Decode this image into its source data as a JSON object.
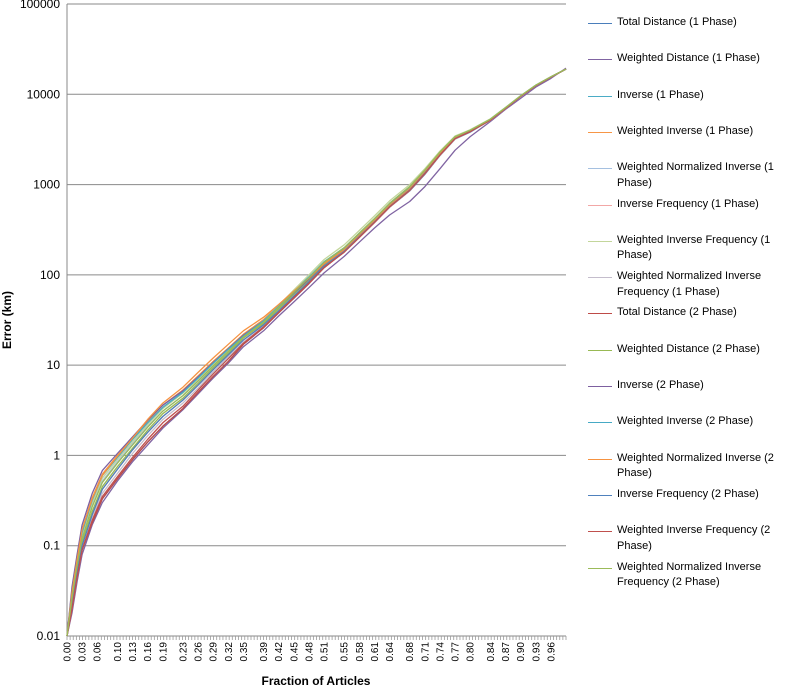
{
  "chart_data": {
    "type": "line",
    "title": "",
    "xlabel": "Fraction of Articles",
    "ylabel": "Error (km)",
    "y_scale": "log",
    "ylim": [
      0.01,
      100000
    ],
    "xlim": [
      0.0,
      0.99
    ],
    "y_ticks": [
      "0.01",
      "0.1",
      "1",
      "10",
      "100",
      "1000",
      "10000",
      "100000"
    ],
    "x_ticks": [
      "0.00",
      "0.03",
      "0.06",
      "0.10",
      "0.13",
      "0.16",
      "0.19",
      "0.23",
      "0.26",
      "0.29",
      "0.32",
      "0.35",
      "0.39",
      "0.42",
      "0.45",
      "0.48",
      "0.51",
      "0.55",
      "0.58",
      "0.61",
      "0.64",
      "0.68",
      "0.71",
      "0.74",
      "0.77",
      "0.80",
      "0.84",
      "0.87",
      "0.90",
      "0.93",
      "0.96"
    ],
    "grid": "horizontal",
    "legend_position": "right",
    "x": [
      0.0,
      0.01,
      0.02,
      0.03,
      0.05,
      0.07,
      0.1,
      0.13,
      0.16,
      0.19,
      0.23,
      0.26,
      0.29,
      0.32,
      0.35,
      0.39,
      0.42,
      0.45,
      0.48,
      0.51,
      0.55,
      0.58,
      0.61,
      0.64,
      0.68,
      0.71,
      0.74,
      0.77,
      0.8,
      0.84,
      0.87,
      0.9,
      0.93,
      0.96,
      0.99
    ],
    "series": [
      {
        "name": "Total Distance (1 Phase)",
        "color": "#4A7EBB",
        "values": [
          0.01,
          0.02,
          0.045,
          0.09,
          0.18,
          0.33,
          0.55,
          0.9,
          1.4,
          2.1,
          3.3,
          5.0,
          7.5,
          11,
          17,
          26,
          38,
          55,
          80,
          120,
          180,
          260,
          380,
          560,
          850,
          1300,
          2100,
          3200,
          3800,
          5200,
          7000,
          9500,
          12500,
          15500,
          19000
        ]
      },
      {
        "name": "Weighted Distance (1 Phase)",
        "color": "#8064A2",
        "values": [
          0.01,
          0.018,
          0.04,
          0.08,
          0.17,
          0.3,
          0.52,
          0.85,
          1.3,
          2.0,
          3.2,
          4.8,
          7.2,
          10.5,
          16,
          24,
          35,
          50,
          72,
          105,
          160,
          230,
          330,
          460,
          650,
          950,
          1500,
          2400,
          3400,
          5000,
          6800,
          9000,
          12000,
          15000,
          19500
        ]
      },
      {
        "name": "Inverse (1 Phase)",
        "color": "#4BACC6",
        "values": [
          0.01,
          0.03,
          0.07,
          0.14,
          0.32,
          0.6,
          0.95,
          1.5,
          2.3,
          3.4,
          5.0,
          7.2,
          10.5,
          15,
          21,
          31,
          45,
          66,
          95,
          140,
          200,
          290,
          420,
          620,
          950,
          1450,
          2300,
          3400,
          4000,
          5300,
          7100,
          9600,
          12600,
          15600,
          19000
        ]
      },
      {
        "name": "Weighted Inverse (1 Phase)",
        "color": "#F79646",
        "values": [
          0.01,
          0.032,
          0.075,
          0.15,
          0.34,
          0.62,
          1.0,
          1.55,
          2.4,
          3.6,
          5.3,
          7.6,
          11,
          15.5,
          22,
          32,
          46,
          65,
          92,
          135,
          195,
          280,
          410,
          610,
          930,
          1420,
          2250,
          3350,
          3950,
          5250,
          7050,
          9550,
          12550,
          15550,
          19000
        ]
      },
      {
        "name": "Weighted Normalized Inverse (1 Phase)",
        "color": "#A5C0E0",
        "values": [
          0.01,
          0.025,
          0.06,
          0.12,
          0.28,
          0.52,
          0.85,
          1.35,
          2.1,
          3.1,
          4.6,
          6.6,
          9.7,
          14,
          20,
          29,
          42,
          60,
          86,
          128,
          185,
          270,
          390,
          580,
          880,
          1350,
          2150,
          3250,
          3900,
          5200,
          7000,
          9500,
          12500,
          15500,
          19000
        ]
      },
      {
        "name": "Inverse Frequency (1 Phase)",
        "color": "#F2A7A6",
        "values": [
          0.01,
          0.022,
          0.05,
          0.1,
          0.22,
          0.42,
          0.7,
          1.15,
          1.8,
          2.7,
          4.1,
          6.0,
          8.9,
          13,
          19,
          28,
          40,
          58,
          84,
          125,
          182,
          265,
          385,
          570,
          870,
          1340,
          2130,
          3230,
          3880,
          5180,
          6980,
          9480,
          12480,
          15480,
          19000
        ]
      },
      {
        "name": "Weighted Inverse Frequency (1 Phase)",
        "color": "#C3D69B",
        "values": [
          0.01,
          0.028,
          0.065,
          0.13,
          0.3,
          0.56,
          0.9,
          1.42,
          2.2,
          3.3,
          4.9,
          7.0,
          10.2,
          14.8,
          21,
          31,
          46,
          68,
          100,
          148,
          215,
          310,
          450,
          660,
          1000,
          1500,
          2350,
          3450,
          4050,
          5350,
          7150,
          9650,
          12650,
          15650,
          19000
        ]
      },
      {
        "name": "Weighted Normalized Inverse Frequency (1 Phase)",
        "color": "#C4BDCC",
        "values": [
          0.01,
          0.02,
          0.045,
          0.09,
          0.2,
          0.38,
          0.63,
          1.05,
          1.65,
          2.5,
          3.8,
          5.6,
          8.4,
          12.3,
          18,
          27,
          39,
          56,
          82,
          122,
          178,
          260,
          378,
          560,
          860,
          1320,
          2100,
          3200,
          3850,
          5150,
          6950,
          9450,
          12450,
          15450,
          19000
        ]
      },
      {
        "name": "Total Distance (2 Phase)",
        "color": "#BE4B48",
        "values": [
          0.01,
          0.02,
          0.045,
          0.09,
          0.18,
          0.33,
          0.55,
          0.9,
          1.4,
          2.1,
          3.3,
          5.0,
          7.5,
          11,
          17,
          26,
          38,
          55,
          80,
          120,
          180,
          260,
          385,
          570,
          870,
          1330,
          2150,
          3250,
          3850,
          5250,
          7050,
          9550,
          12550,
          15550,
          19000
        ]
      },
      {
        "name": "Weighted Distance (2 Phase)",
        "color": "#98B954",
        "values": [
          0.01,
          0.025,
          0.055,
          0.11,
          0.24,
          0.45,
          0.75,
          1.2,
          1.9,
          2.9,
          4.3,
          6.3,
          9.3,
          13.5,
          20,
          29,
          42,
          61,
          88,
          130,
          190,
          275,
          400,
          600,
          920,
          1420,
          2250,
          3350,
          3950,
          5250,
          7050,
          9550,
          12550,
          15550,
          19000
        ]
      },
      {
        "name": "Inverse (2 Phase)",
        "color": "#7D60A0",
        "values": [
          0.01,
          0.035,
          0.08,
          0.17,
          0.38,
          0.68,
          1.05,
          1.6,
          2.45,
          3.6,
          5.2,
          7.4,
          10.7,
          15.2,
          21.5,
          31,
          44,
          63,
          90,
          132,
          190,
          275,
          400,
          590,
          900,
          1380,
          2200,
          3300,
          3900,
          5200,
          7000,
          9500,
          12500,
          15500,
          19000
        ]
      },
      {
        "name": "Weighted Inverse (2 Phase)",
        "color": "#46AAC5",
        "values": [
          0.01,
          0.03,
          0.07,
          0.14,
          0.32,
          0.6,
          0.95,
          1.5,
          2.3,
          3.4,
          5.0,
          7.2,
          10.5,
          15,
          21,
          31,
          45,
          65,
          93,
          137,
          198,
          285,
          415,
          615,
          940,
          1440,
          2280,
          3380,
          3980,
          5280,
          7080,
          9580,
          12580,
          15580,
          19000
        ]
      },
      {
        "name": "Weighted Normalized Inverse (2 Phase)",
        "color": "#F69240",
        "values": [
          0.01,
          0.03,
          0.07,
          0.15,
          0.33,
          0.6,
          0.98,
          1.55,
          2.5,
          3.8,
          5.7,
          8.3,
          12,
          17,
          24,
          34,
          47,
          66,
          92,
          133,
          190,
          275,
          400,
          590,
          900,
          1380,
          2200,
          3300,
          3900,
          5200,
          7000,
          9500,
          12500,
          15500,
          19000
        ]
      },
      {
        "name": "Inverse Frequency (2 Phase)",
        "color": "#4F81BD",
        "values": [
          0.01,
          0.022,
          0.05,
          0.1,
          0.22,
          0.42,
          0.7,
          1.15,
          1.8,
          2.7,
          4.1,
          6.0,
          8.9,
          13,
          19,
          28,
          40,
          58,
          84,
          125,
          182,
          265,
          385,
          570,
          870,
          1340,
          2130,
          3230,
          3880,
          5180,
          6980,
          9480,
          12480,
          15480,
          19000
        ]
      },
      {
        "name": "Weighted Inverse Frequency (2 Phase)",
        "color": "#C0504D",
        "values": [
          0.01,
          0.02,
          0.045,
          0.09,
          0.19,
          0.35,
          0.58,
          0.95,
          1.5,
          2.3,
          3.5,
          5.3,
          8,
          11.8,
          17.5,
          26.5,
          38.5,
          56,
          81,
          121,
          178,
          260,
          380,
          565,
          860,
          1320,
          2120,
          3220,
          3860,
          5160,
          6960,
          9460,
          12460,
          15460,
          19000
        ]
      },
      {
        "name": "Weighted Normalized Inverse Frequency (2 Phase)",
        "color": "#9BBB59",
        "values": [
          0.01,
          0.026,
          0.06,
          0.12,
          0.27,
          0.5,
          0.82,
          1.3,
          2.05,
          3.1,
          4.6,
          6.7,
          9.8,
          14.2,
          20.5,
          30,
          44,
          64,
          93,
          138,
          200,
          290,
          420,
          620,
          950,
          1450,
          2300,
          3400,
          4000,
          5300,
          7100,
          9600,
          12600,
          15600,
          19000
        ]
      }
    ]
  }
}
